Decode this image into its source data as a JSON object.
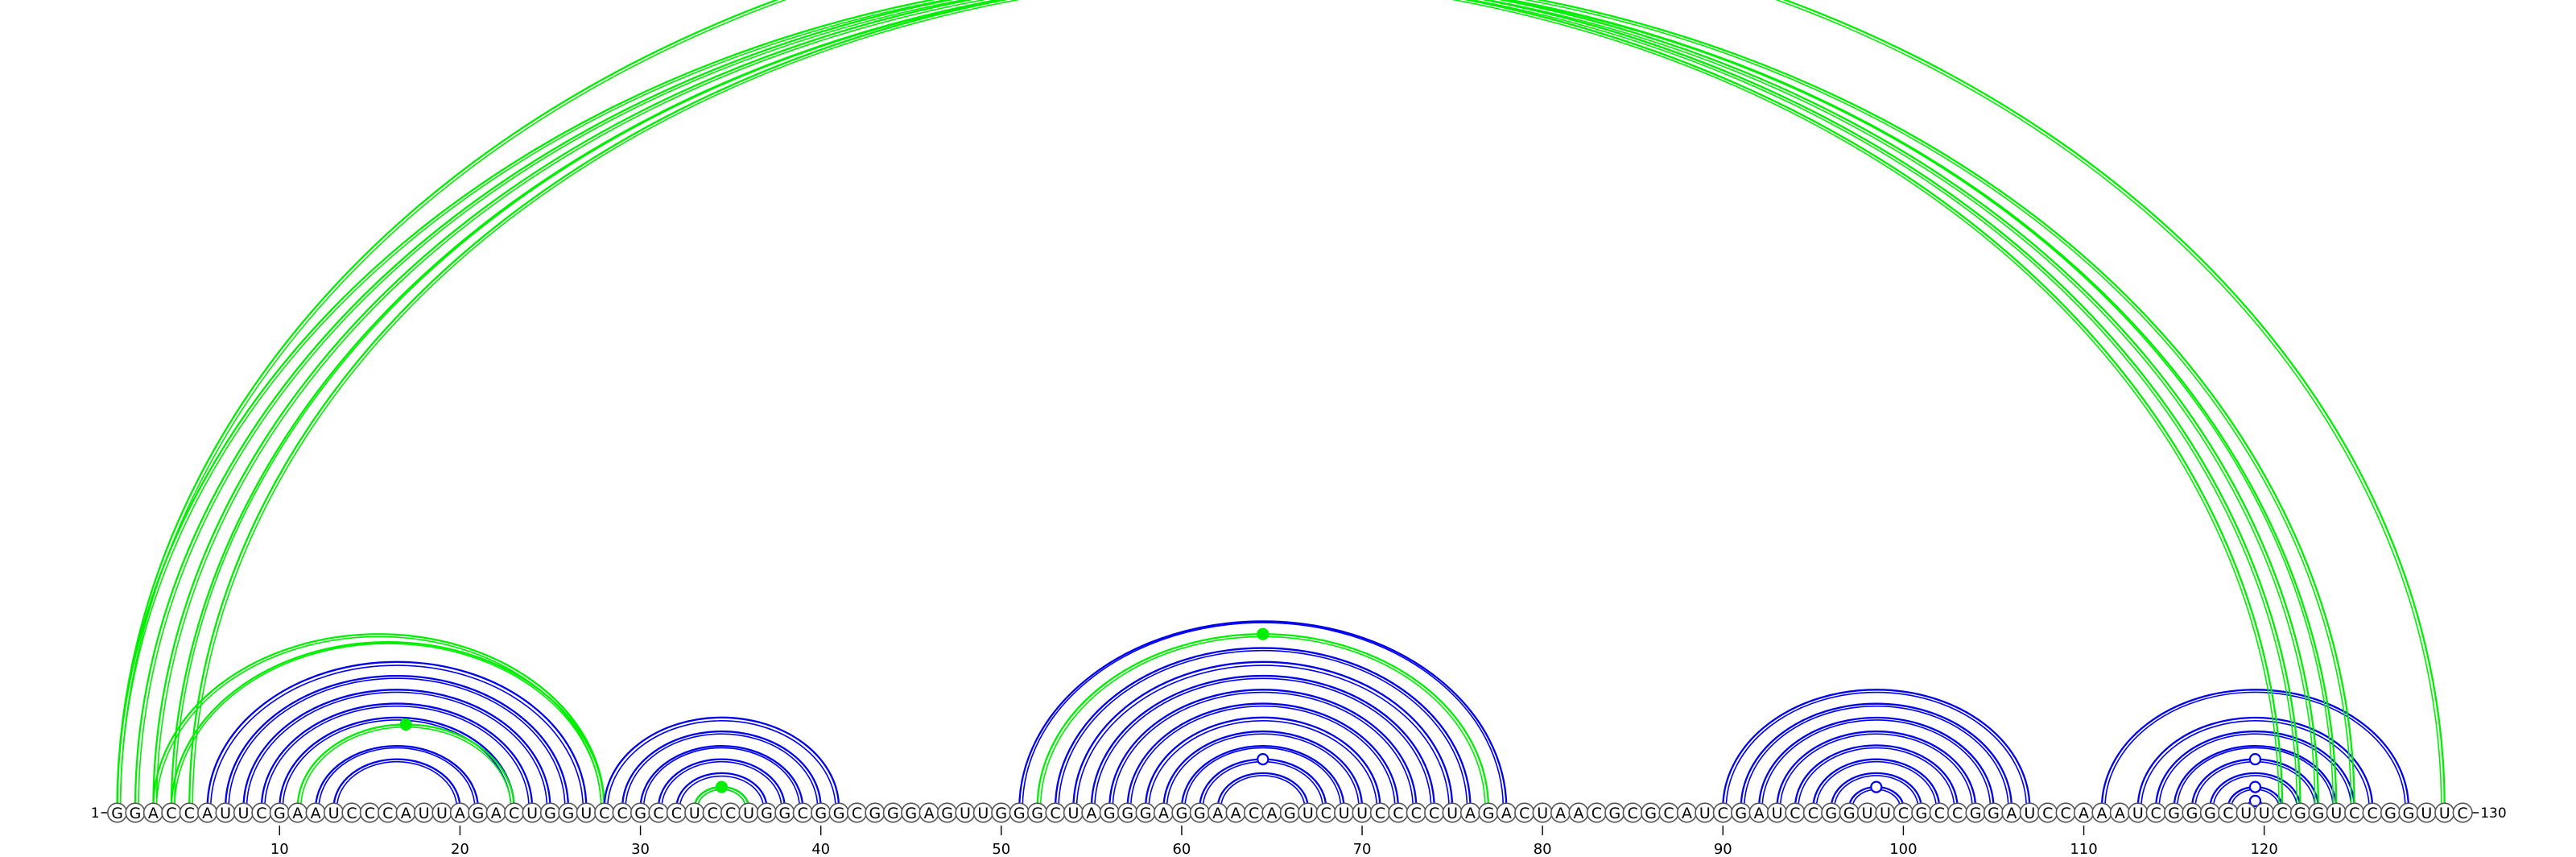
{
  "diagram": {
    "type": "rna-arc-diagram",
    "sequence": "GGACCAUUCGAAUCCCAUUAGACUGGUCCGCCUCCUGGCGGCGGGAGUUGGGCUAGGGAGGAACAGUCUUCCCCUAGACUAACGCGCAUCGAUCCGGUUCGCCGGAUCCAAAUCGGGCUUCGGUCCGGUUC",
    "start_label": "1",
    "end_label": "130",
    "ticks": [
      10,
      20,
      30,
      40,
      50,
      60,
      70,
      80,
      90,
      100,
      110,
      120
    ],
    "colors": {
      "primary": "#0000ee",
      "secondary": "#00ee00"
    },
    "arc_groups": [
      {
        "color": "primary",
        "pairs": [
          [
            6,
            27
          ],
          [
            7,
            26
          ],
          [
            8,
            25
          ],
          [
            9,
            24
          ],
          [
            10,
            23
          ],
          [
            12,
            21
          ],
          [
            13,
            20
          ]
        ]
      },
      {
        "color": "secondary",
        "pairs": [
          [
            11,
            23
          ]
        ],
        "markers": [
          {
            "pair": [
              11,
              23
            ],
            "style": "filled"
          }
        ]
      },
      {
        "color": "secondary",
        "pairs": [
          [
            3,
            28
          ],
          [
            4,
            28
          ]
        ]
      },
      {
        "color": "primary",
        "pairs": [
          [
            28,
            41
          ],
          [
            29,
            40
          ],
          [
            30,
            39
          ],
          [
            31,
            38
          ],
          [
            32,
            37
          ],
          [
            33,
            36
          ]
        ]
      },
      {
        "color": "secondary",
        "pairs": [
          [
            33,
            36
          ]
        ],
        "markers": [
          {
            "pair": [
              33,
              36
            ],
            "style": "filled"
          }
        ]
      },
      {
        "color": "primary",
        "pairs": [
          [
            51,
            78
          ],
          [
            53,
            76
          ],
          [
            54,
            75
          ],
          [
            55,
            74
          ],
          [
            56,
            73
          ],
          [
            57,
            72
          ],
          [
            58,
            71
          ],
          [
            59,
            70
          ],
          [
            60,
            69
          ],
          [
            61,
            68
          ],
          [
            62,
            67
          ]
        ],
        "markers": [
          {
            "pair": [
              61,
              68
            ],
            "style": "open"
          }
        ]
      },
      {
        "color": "secondary",
        "pairs": [
          [
            52,
            77
          ]
        ],
        "markers": [
          {
            "pair": [
              52,
              77
            ],
            "style": "filled"
          }
        ]
      },
      {
        "color": "primary",
        "pairs": [
          [
            90,
            107
          ],
          [
            91,
            106
          ],
          [
            92,
            105
          ],
          [
            93,
            104
          ],
          [
            94,
            103
          ],
          [
            95,
            102
          ],
          [
            96,
            101
          ],
          [
            97,
            100
          ]
        ],
        "markers": [
          {
            "pair": [
              97,
              100
            ],
            "style": "open"
          }
        ]
      },
      {
        "color": "primary",
        "pairs": [
          [
            111,
            128
          ],
          [
            113,
            126
          ],
          [
            114,
            125
          ],
          [
            115,
            124
          ],
          [
            116,
            123
          ],
          [
            117,
            122
          ],
          [
            118,
            121
          ],
          [
            119,
            120
          ]
        ],
        "markers": [
          {
            "pair": [
              116,
              123
            ],
            "style": "open"
          },
          {
            "pair": [
              118,
              121
            ],
            "style": "open"
          },
          {
            "pair": [
              119,
              120
            ],
            "style": "open"
          }
        ]
      },
      {
        "color": "secondary",
        "pairs": [
          [
            1,
            121
          ],
          [
            2,
            122
          ],
          [
            3,
            123
          ],
          [
            4,
            124
          ],
          [
            5,
            125
          ]
        ]
      },
      {
        "color": "secondary",
        "pairs": [
          [
            1,
            130
          ]
        ],
        "markers": [
          {
            "pair": [
              1,
              130
            ],
            "style": "open"
          }
        ]
      }
    ]
  }
}
